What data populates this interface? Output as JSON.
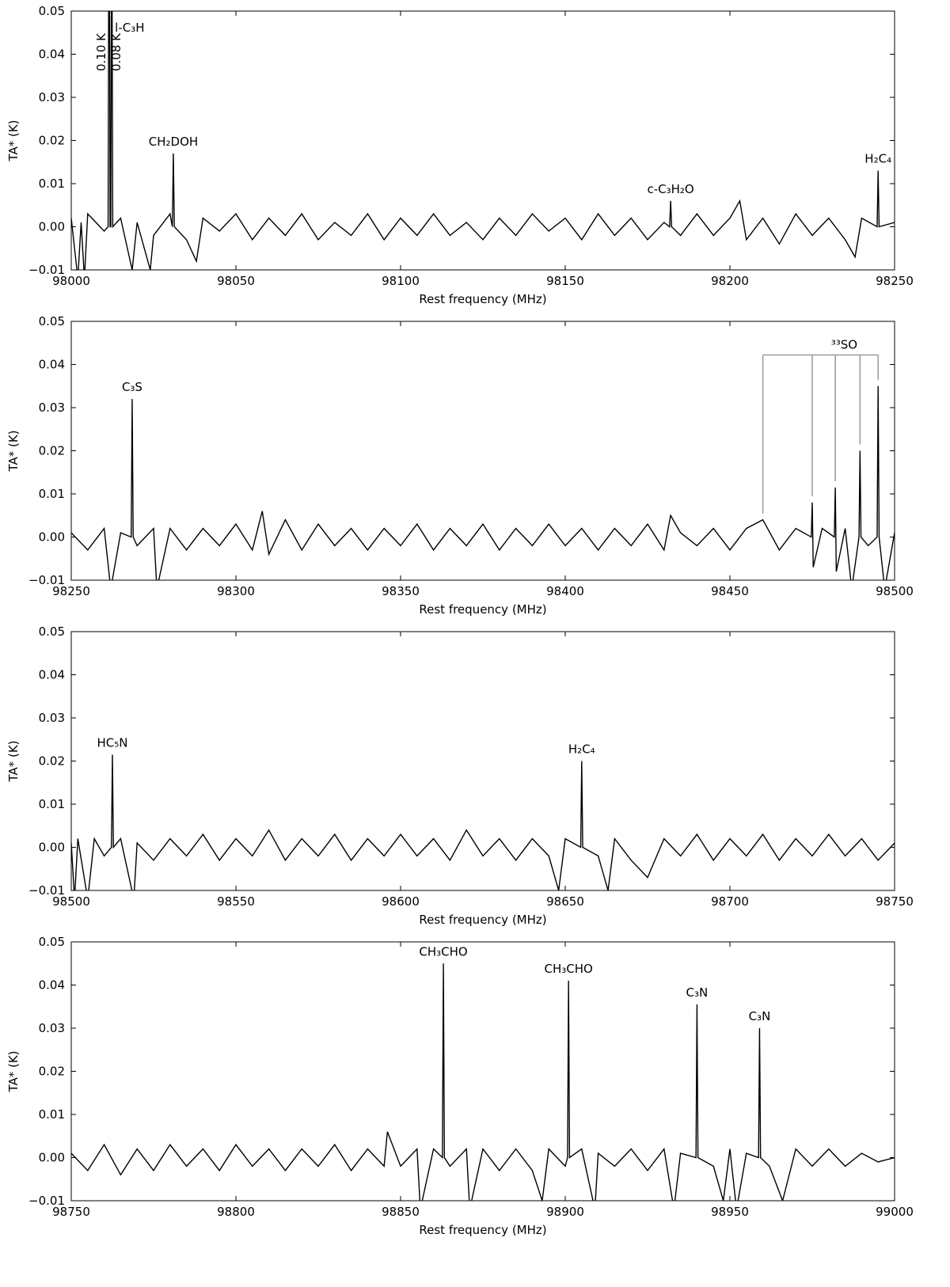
{
  "chart_data": [
    {
      "type": "line",
      "xlabel": "Rest frequency (MHz)",
      "ylabel": "TA* (K)",
      "xlim": [
        98000,
        98250
      ],
      "xticks": [
        98000,
        98050,
        98100,
        98150,
        98200,
        98250
      ],
      "ylim": [
        -0.01,
        0.05
      ],
      "yticks": [
        {
          "value": -0.01,
          "label": "−0.01"
        },
        {
          "value": 0,
          "label": "0.00"
        },
        0.01,
        0.02,
        0.03,
        0.04,
        0.05
      ],
      "series": [
        {
          "color": "#000000",
          "x": [
            98000,
            98002,
            98003,
            98004,
            98005,
            98010,
            98011.2,
            98011.5,
            98011.8,
            98012.0,
            98012.3,
            98012.6,
            98015,
            98018.5,
            98020,
            98024,
            98025,
            98030,
            98030.7,
            98031,
            98031.3,
            98035,
            98038,
            98040,
            98045,
            98050,
            98055,
            98060,
            98065,
            98070,
            98075,
            98080,
            98085,
            98090,
            98095,
            98100,
            98105,
            98110,
            98115,
            98120,
            98125,
            98130,
            98135,
            98140,
            98145,
            98150,
            98155,
            98160,
            98165,
            98170,
            98175,
            98180,
            98181.7,
            98182,
            98182.3,
            98185,
            98190,
            98195,
            98200,
            98203,
            98205,
            98210,
            98215,
            98220,
            98225,
            98230,
            98235,
            98238,
            98240,
            98244.7,
            98245,
            98245.3,
            98250
          ],
          "values": [
            0.002,
            -0.012,
            0.001,
            -0.012,
            0.003,
            -0.001,
            0.0,
            0.1,
            0.0,
            0.0,
            0.08,
            0.0,
            0.002,
            -0.01,
            0.001,
            -0.01,
            -0.002,
            0.003,
            0.0,
            0.017,
            0.0,
            -0.003,
            -0.008,
            0.002,
            -0.001,
            0.003,
            -0.003,
            0.002,
            -0.002,
            0.003,
            -0.003,
            0.001,
            -0.002,
            0.003,
            -0.003,
            0.002,
            -0.002,
            0.003,
            -0.002,
            0.001,
            -0.003,
            0.002,
            -0.002,
            0.003,
            -0.001,
            0.002,
            -0.003,
            0.003,
            -0.002,
            0.002,
            -0.003,
            0.001,
            0.0,
            0.006,
            0.0,
            -0.002,
            0.003,
            -0.002,
            0.002,
            0.006,
            -0.003,
            0.002,
            -0.004,
            0.003,
            -0.002,
            0.002,
            -0.003,
            -0.007,
            0.002,
            0.0,
            0.013,
            0.0,
            0.001
          ]
        }
      ],
      "annotations": [
        {
          "text": "l-C₃H",
          "x": 98012.3
        },
        {
          "text": "CH₂DOH",
          "x": 98031
        },
        {
          "text": "c-C₃H₂O",
          "x": 98182
        },
        {
          "text": "H₂C₄",
          "x": 98245
        }
      ],
      "clipped_labels": [
        {
          "text": "0.10 K",
          "x": 98011.5
        },
        {
          "text": "0.08 K",
          "x": 98012.3
        }
      ]
    },
    {
      "type": "line",
      "xlabel": "Rest frequency (MHz)",
      "ylabel": "TA* (K)",
      "xlim": [
        98250,
        98500
      ],
      "xticks": [
        98250,
        98300,
        98350,
        98400,
        98450,
        98500
      ],
      "ylim": [
        -0.01,
        0.05
      ],
      "yticks": [
        {
          "value": -0.01,
          "label": "−0.01"
        },
        {
          "value": 0,
          "label": "0.00"
        },
        0.01,
        0.02,
        0.03,
        0.04,
        0.05
      ],
      "series": [
        {
          "color": "#000000",
          "x": [
            98250,
            98255,
            98260,
            98262,
            98265,
            98268.2,
            98268.5,
            98268.8,
            98270,
            98275,
            98276,
            98280,
            98285,
            98290,
            98295,
            98300,
            98305,
            98308,
            98310,
            98315,
            98320,
            98325,
            98330,
            98335,
            98340,
            98345,
            98350,
            98355,
            98360,
            98365,
            98370,
            98375,
            98380,
            98385,
            98390,
            98395,
            98400,
            98405,
            98410,
            98415,
            98420,
            98425,
            98430,
            98432,
            98435,
            98440,
            98445,
            98450,
            98455,
            98460,
            98465,
            98470,
            98474.7,
            98475,
            98475.3,
            98478,
            98481.7,
            98482,
            98482.3,
            98485,
            98487,
            98489.2,
            98489.5,
            98489.8,
            98492,
            98494.7,
            98495,
            98495.3,
            98497,
            98500
          ],
          "values": [
            0.001,
            -0.003,
            0.002,
            -0.012,
            0.001,
            0.0,
            0.032,
            0.0,
            -0.002,
            0.002,
            -0.012,
            0.002,
            -0.003,
            0.002,
            -0.002,
            0.003,
            -0.003,
            0.006,
            -0.004,
            0.004,
            -0.003,
            0.003,
            -0.002,
            0.002,
            -0.003,
            0.002,
            -0.002,
            0.003,
            -0.003,
            0.002,
            -0.002,
            0.003,
            -0.003,
            0.002,
            -0.002,
            0.003,
            -0.002,
            0.002,
            -0.003,
            0.002,
            -0.002,
            0.003,
            -0.003,
            0.005,
            0.001,
            -0.002,
            0.002,
            -0.003,
            0.002,
            0.004,
            -0.003,
            0.002,
            0.0,
            0.008,
            -0.007,
            0.002,
            0.0,
            0.0115,
            -0.008,
            0.002,
            -0.012,
            0.0,
            0.02,
            0.0,
            -0.002,
            0.0,
            0.035,
            0.0,
            -0.012,
            0.001
          ]
        }
      ],
      "annotations": [
        {
          "text": "C₃S",
          "x": 98268.5
        },
        {
          "text": "³³SO",
          "x": [
            98460,
            98475,
            98482,
            98489.5,
            98495
          ]
        }
      ]
    },
    {
      "type": "line",
      "xlabel": "Rest frequency (MHz)",
      "ylabel": "TA* (K)",
      "xlim": [
        98500,
        98750
      ],
      "xticks": [
        98500,
        98550,
        98600,
        98650,
        98700,
        98750
      ],
      "ylim": [
        -0.01,
        0.05
      ],
      "yticks": [
        {
          "value": -0.01,
          "label": "−0.01"
        },
        {
          "value": 0,
          "label": "0.00"
        },
        0.01,
        0.02,
        0.03,
        0.04,
        0.05
      ],
      "series": [
        {
          "color": "#000000",
          "x": [
            98500,
            98501,
            98502,
            98505,
            98507,
            98510,
            98512.2,
            98512.5,
            98512.8,
            98515,
            98519,
            98520,
            98525,
            98530,
            98535,
            98540,
            98545,
            98550,
            98555,
            98560,
            98565,
            98570,
            98575,
            98580,
            98585,
            98590,
            98595,
            98600,
            98605,
            98610,
            98615,
            98620,
            98625,
            98630,
            98635,
            98640,
            98645,
            98648,
            98650,
            98654.7,
            98655,
            98655.3,
            98660,
            98663,
            98665,
            98670,
            98675,
            98680,
            98685,
            98690,
            98695,
            98700,
            98705,
            98710,
            98715,
            98720,
            98725,
            98730,
            98735,
            98740,
            98745,
            98750
          ],
          "values": [
            0.001,
            -0.012,
            0.002,
            -0.012,
            0.002,
            -0.002,
            0.0,
            0.0215,
            0.0,
            0.002,
            -0.012,
            0.001,
            -0.003,
            0.002,
            -0.002,
            0.003,
            -0.003,
            0.002,
            -0.002,
            0.004,
            -0.003,
            0.002,
            -0.002,
            0.003,
            -0.003,
            0.002,
            -0.002,
            0.003,
            -0.002,
            0.002,
            -0.003,
            0.004,
            -0.002,
            0.002,
            -0.003,
            0.002,
            -0.002,
            -0.01,
            0.002,
            0.0,
            0.02,
            0.0,
            -0.002,
            -0.01,
            0.002,
            -0.003,
            -0.007,
            0.002,
            -0.002,
            0.003,
            -0.003,
            0.002,
            -0.002,
            0.003,
            -0.003,
            0.002,
            -0.002,
            0.003,
            -0.002,
            0.002,
            -0.003,
            0.001
          ]
        }
      ],
      "annotations": [
        {
          "text": "HC₅N",
          "x": 98512.5
        },
        {
          "text": "H₂C₄",
          "x": 98655
        }
      ]
    },
    {
      "type": "line",
      "xlabel": "Rest frequency (MHz)",
      "ylabel": "TA* (K)",
      "xlim": [
        98750,
        99000
      ],
      "xticks": [
        98750,
        98800,
        98850,
        98900,
        98950,
        99000
      ],
      "ylim": [
        -0.01,
        0.05
      ],
      "yticks": [
        {
          "value": -0.01,
          "label": "−0.01"
        },
        {
          "value": 0,
          "label": "0.00"
        },
        0.01,
        0.02,
        0.03,
        0.04,
        0.05
      ],
      "series": [
        {
          "color": "#000000",
          "x": [
            98750,
            98755,
            98760,
            98765,
            98770,
            98775,
            98780,
            98785,
            98790,
            98795,
            98800,
            98805,
            98810,
            98815,
            98820,
            98825,
            98830,
            98835,
            98840,
            98845,
            98846,
            98850,
            98855,
            98856,
            98860,
            98862.7,
            98863,
            98863.3,
            98865,
            98870,
            98871,
            98875,
            98880,
            98885,
            98890,
            98893,
            98895,
            98900,
            98900.7,
            98901,
            98901.3,
            98905,
            98909,
            98910,
            98915,
            98920,
            98925,
            98930,
            98933,
            98935,
            98939.7,
            98940,
            98940.3,
            98945,
            98948,
            98950,
            98952,
            98955,
            98958.7,
            98959,
            98959.3,
            98962,
            98966,
            98970,
            98975,
            98980,
            98985,
            98990,
            98995,
            99000
          ],
          "values": [
            0.001,
            -0.003,
            0.003,
            -0.004,
            0.002,
            -0.003,
            0.003,
            -0.002,
            0.002,
            -0.003,
            0.003,
            -0.002,
            0.002,
            -0.003,
            0.002,
            -0.002,
            0.003,
            -0.003,
            0.002,
            -0.002,
            0.006,
            -0.002,
            0.002,
            -0.012,
            0.002,
            0.0,
            0.045,
            0.0,
            -0.002,
            0.002,
            -0.012,
            0.002,
            -0.003,
            0.002,
            -0.003,
            -0.01,
            0.002,
            -0.002,
            0.0,
            0.041,
            0.0,
            0.002,
            -0.012,
            0.001,
            -0.002,
            0.002,
            -0.003,
            0.002,
            -0.012,
            0.001,
            0.0,
            0.0355,
            0.0,
            -0.002,
            -0.01,
            0.002,
            -0.012,
            0.001,
            0.0,
            0.03,
            0.0,
            -0.002,
            -0.01,
            0.002,
            -0.002,
            0.002,
            -0.002,
            0.001,
            -0.001,
            0.0
          ]
        }
      ],
      "annotations": [
        {
          "text": "CH₃CHO",
          "x": 98863
        },
        {
          "text": "CH₃CHO",
          "x": 98901
        },
        {
          "text": "C₃N",
          "x": 98940
        },
        {
          "text": "C₃N",
          "x": 98959
        }
      ]
    }
  ]
}
